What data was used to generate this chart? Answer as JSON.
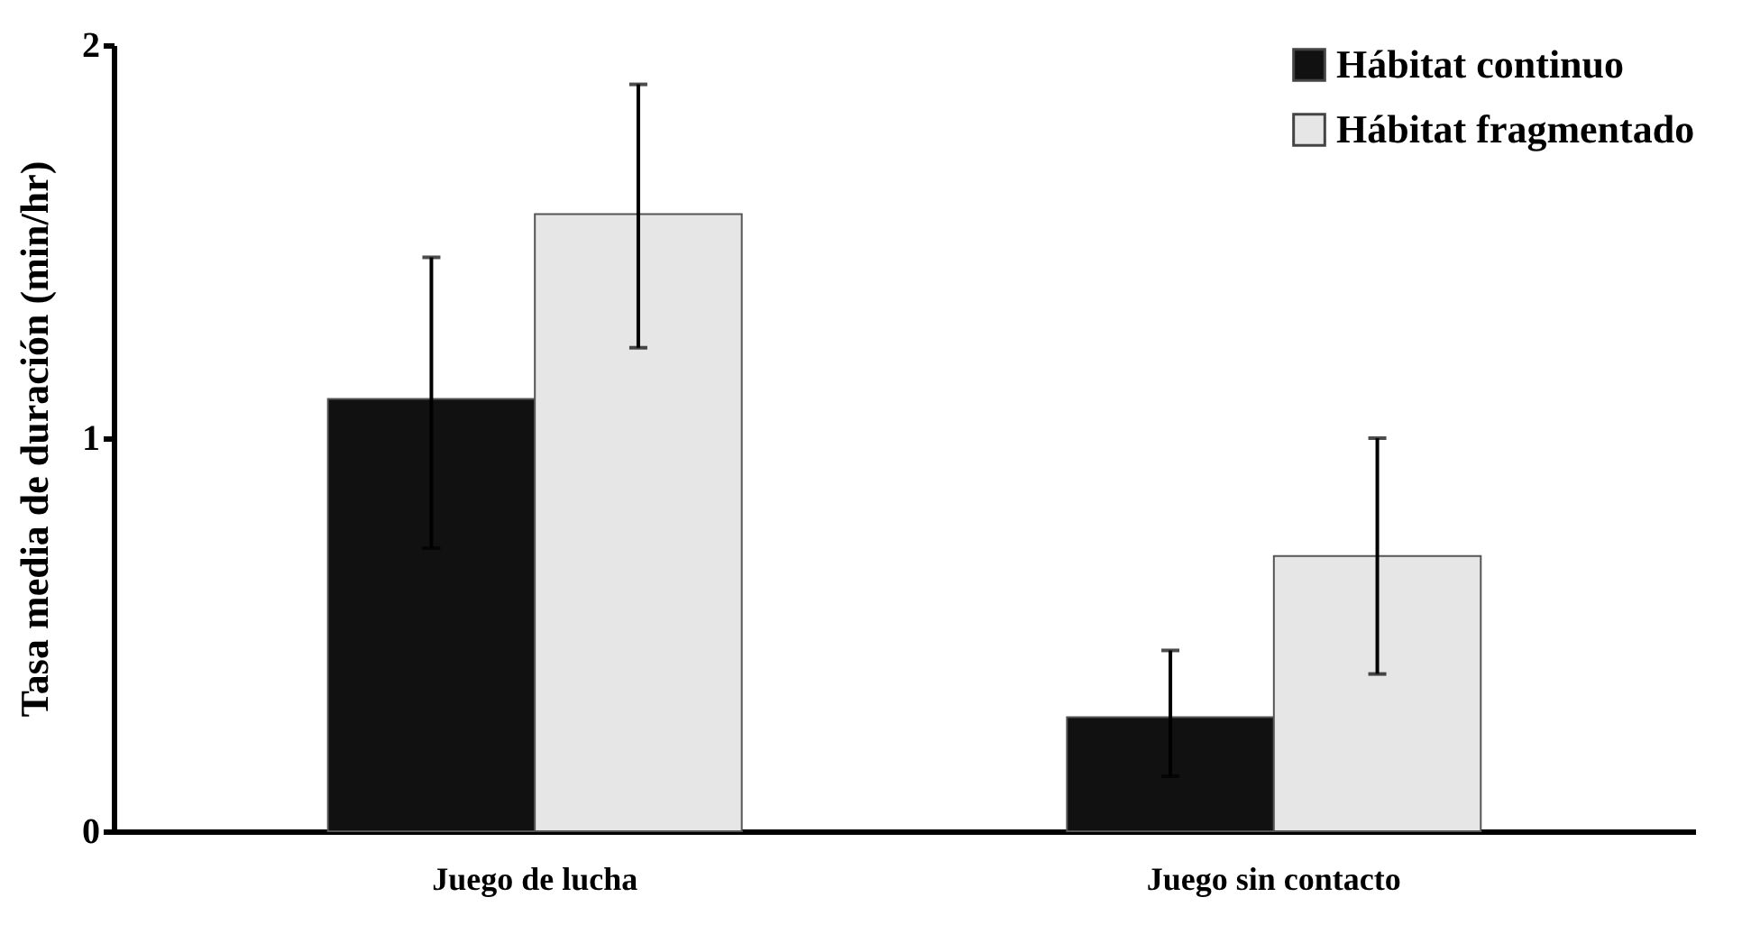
{
  "chart_data": {
    "type": "bar",
    "ylabel": "Tasa media de duración (min/hr)",
    "categories": [
      "Juego de lucha",
      "Juego sin contacto"
    ],
    "series": [
      {
        "name": "Hábitat continuo",
        "color": "#111111",
        "values": [
          1.1,
          0.29
        ],
        "errors": [
          [
            0.72,
            1.46
          ],
          [
            0.14,
            0.46
          ]
        ]
      },
      {
        "name": "Hábitat fragmentado",
        "color": "#e6e6e6",
        "values": [
          1.57,
          0.7
        ],
        "errors": [
          [
            1.23,
            1.9
          ],
          [
            0.4,
            1.0
          ]
        ]
      }
    ],
    "ylim": [
      0,
      2
    ],
    "yticks": [
      0,
      1,
      2
    ],
    "grid": false,
    "legend": "top right"
  }
}
